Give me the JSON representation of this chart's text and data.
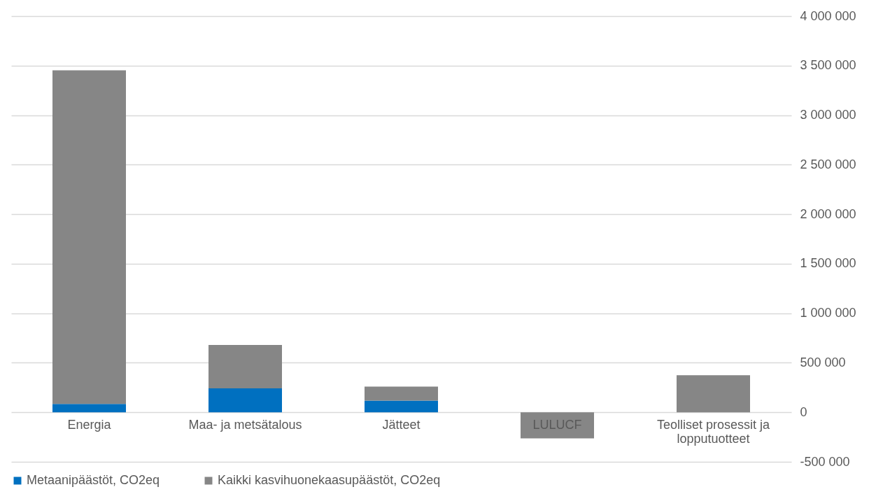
{
  "chart_data": {
    "type": "bar",
    "stacked": true,
    "categories": [
      "Energia",
      "Maa- ja metsätalous",
      "Jätteet",
      "LULUCF",
      "Teolliset prosessit ja lopputuotteet"
    ],
    "series": [
      {
        "name": "Metaanipäästöt, CO2eq",
        "color": "#0070c0",
        "values": [
          84000,
          242000,
          118000,
          0,
          0
        ]
      },
      {
        "name": "Kaikki kasvihuonekaasupäästöt, CO2eq",
        "color": "#868686",
        "values": [
          3368000,
          438000,
          142000,
          -263000,
          374000
        ]
      }
    ],
    "ylim": [
      -500000,
      4000000
    ],
    "yticks": [
      {
        "value": -500000,
        "label": "-500 000"
      },
      0,
      {
        "value": 500000,
        "label": "500 000"
      },
      {
        "value": 1000000,
        "label": "1 000 000"
      },
      {
        "value": 1500000,
        "label": "1 500 000"
      },
      {
        "value": 2000000,
        "label": "2 000 000"
      },
      {
        "value": 2500000,
        "label": "2 500 000"
      },
      {
        "value": 3000000,
        "label": "3 000 000"
      },
      {
        "value": 3500000,
        "label": "3 500 000"
      },
      {
        "value": 4000000,
        "label": "4 000 000"
      }
    ],
    "grid": "y",
    "legend": "bottom"
  }
}
